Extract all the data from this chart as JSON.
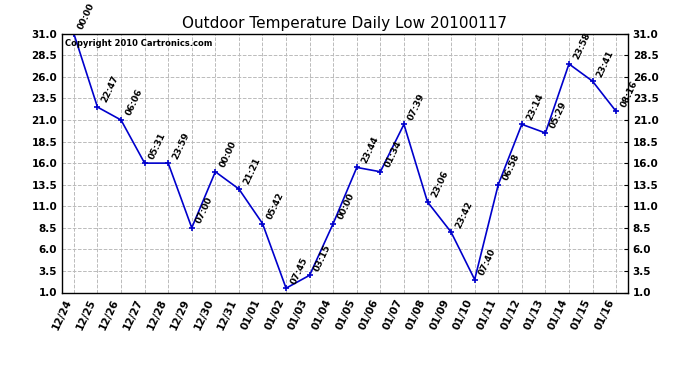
{
  "title": "Outdoor Temperature Daily Low 20100117",
  "copyright": "Copyright 2010 Cartronics.com",
  "x_labels": [
    "12/24",
    "12/25",
    "12/26",
    "12/27",
    "12/28",
    "12/29",
    "12/30",
    "12/31",
    "01/01",
    "01/02",
    "01/03",
    "01/04",
    "01/05",
    "01/06",
    "01/07",
    "01/08",
    "01/09",
    "01/10",
    "01/11",
    "01/12",
    "01/13",
    "01/14",
    "01/15",
    "01/16"
  ],
  "y_values": [
    31.0,
    22.5,
    21.0,
    16.0,
    16.0,
    8.5,
    15.0,
    13.0,
    9.0,
    1.5,
    3.0,
    9.0,
    15.5,
    15.0,
    20.5,
    11.5,
    8.0,
    2.5,
    13.5,
    20.5,
    19.5,
    27.5,
    25.5,
    22.0
  ],
  "time_labels": [
    "00:00",
    "22:47",
    "06:06",
    "05:31",
    "23:59",
    "07:00",
    "00:00",
    "21:21",
    "05:42",
    "07:45",
    "03:15",
    "00:00",
    "23:44",
    "01:34",
    "07:39",
    "23:06",
    "23:42",
    "07:40",
    "06:58",
    "23:14",
    "05:29",
    "23:58",
    "23:41",
    "08:16"
  ],
  "line_color": "#0000CC",
  "marker_color": "#0000CC",
  "background_color": "#ffffff",
  "plot_bg_color": "#ffffff",
  "grid_color": "#bbbbbb",
  "ylim": [
    1.0,
    31.0
  ],
  "yticks": [
    1.0,
    3.5,
    6.0,
    8.5,
    11.0,
    13.5,
    16.0,
    18.5,
    21.0,
    23.5,
    26.0,
    28.5,
    31.0
  ],
  "title_fontsize": 11,
  "label_fontsize": 6.5,
  "tick_fontsize": 7.5
}
